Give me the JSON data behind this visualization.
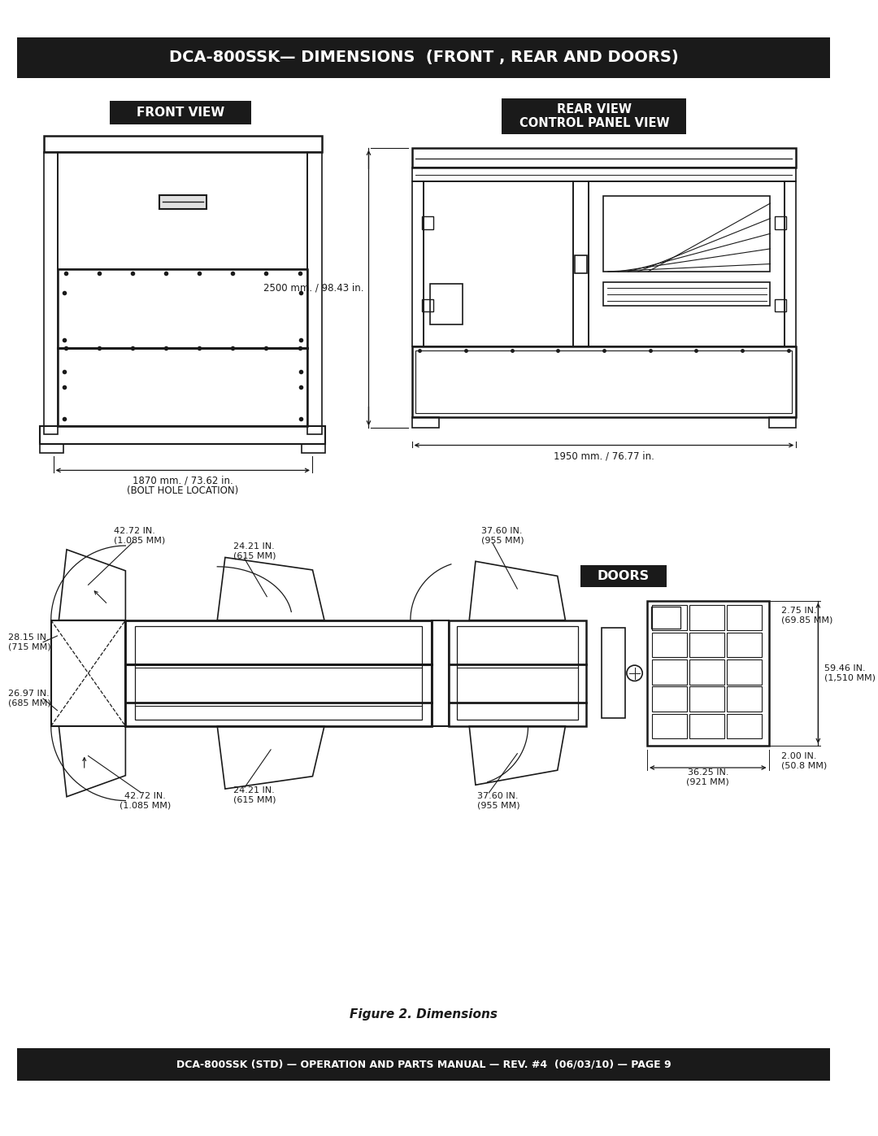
{
  "page_bg": "#ffffff",
  "header_bg": "#1a1a1a",
  "header_text": "DCA-800SSK— DIMENSIONS  (FRONT , REAR AND DOORS)",
  "header_text_color": "#ffffff",
  "footer_bg": "#1a1a1a",
  "footer_text": "DCA-800SSK (STD) — OPERATION AND PARTS MANUAL — REV. #4  (06/03/10) — PAGE 9",
  "footer_text_color": "#ffffff",
  "front_view_label": "FRONT VIEW",
  "rear_view_label": "REAR VIEW\nCONTROL PANEL VIEW",
  "doors_label": "DOORS",
  "figure_caption": "Figure 2. Dimensions",
  "front_dim_width": "1870 mm. / 73.62 in.",
  "front_dim_note": "(BOLT HOLE LOCATION)",
  "rear_dim_height": "2500 mm. / 98.43 in.",
  "rear_dim_width": "1950 mm. / 76.77 in.",
  "door_dims": {
    "top_left": "42.72 IN.\n(1.085 MM)",
    "top_mid": "24.21 IN.\n(615 MM)",
    "top_right": "37.60 IN.\n(955 MM)",
    "left_top": "28.15 IN.\n(715 MM)",
    "left_bot": "26.97 IN.\n(685 MM)",
    "bot_left": "42.72 IN.\n(1.085 MM)",
    "bot_mid": "24.21 IN.\n(615 MM)",
    "bot_right": "37.60 IN.\n(955 MM)",
    "door_w": "36.25 IN.\n(921 MM)",
    "door_h": "59.46 IN.\n(1,510 MM)",
    "door_right1": "2.75 IN.\n(69.85 MM)",
    "door_right2": "2.00 IN.\n(50.8 MM)"
  },
  "line_color": "#1a1a1a",
  "dim_line_color": "#1a1a1a"
}
